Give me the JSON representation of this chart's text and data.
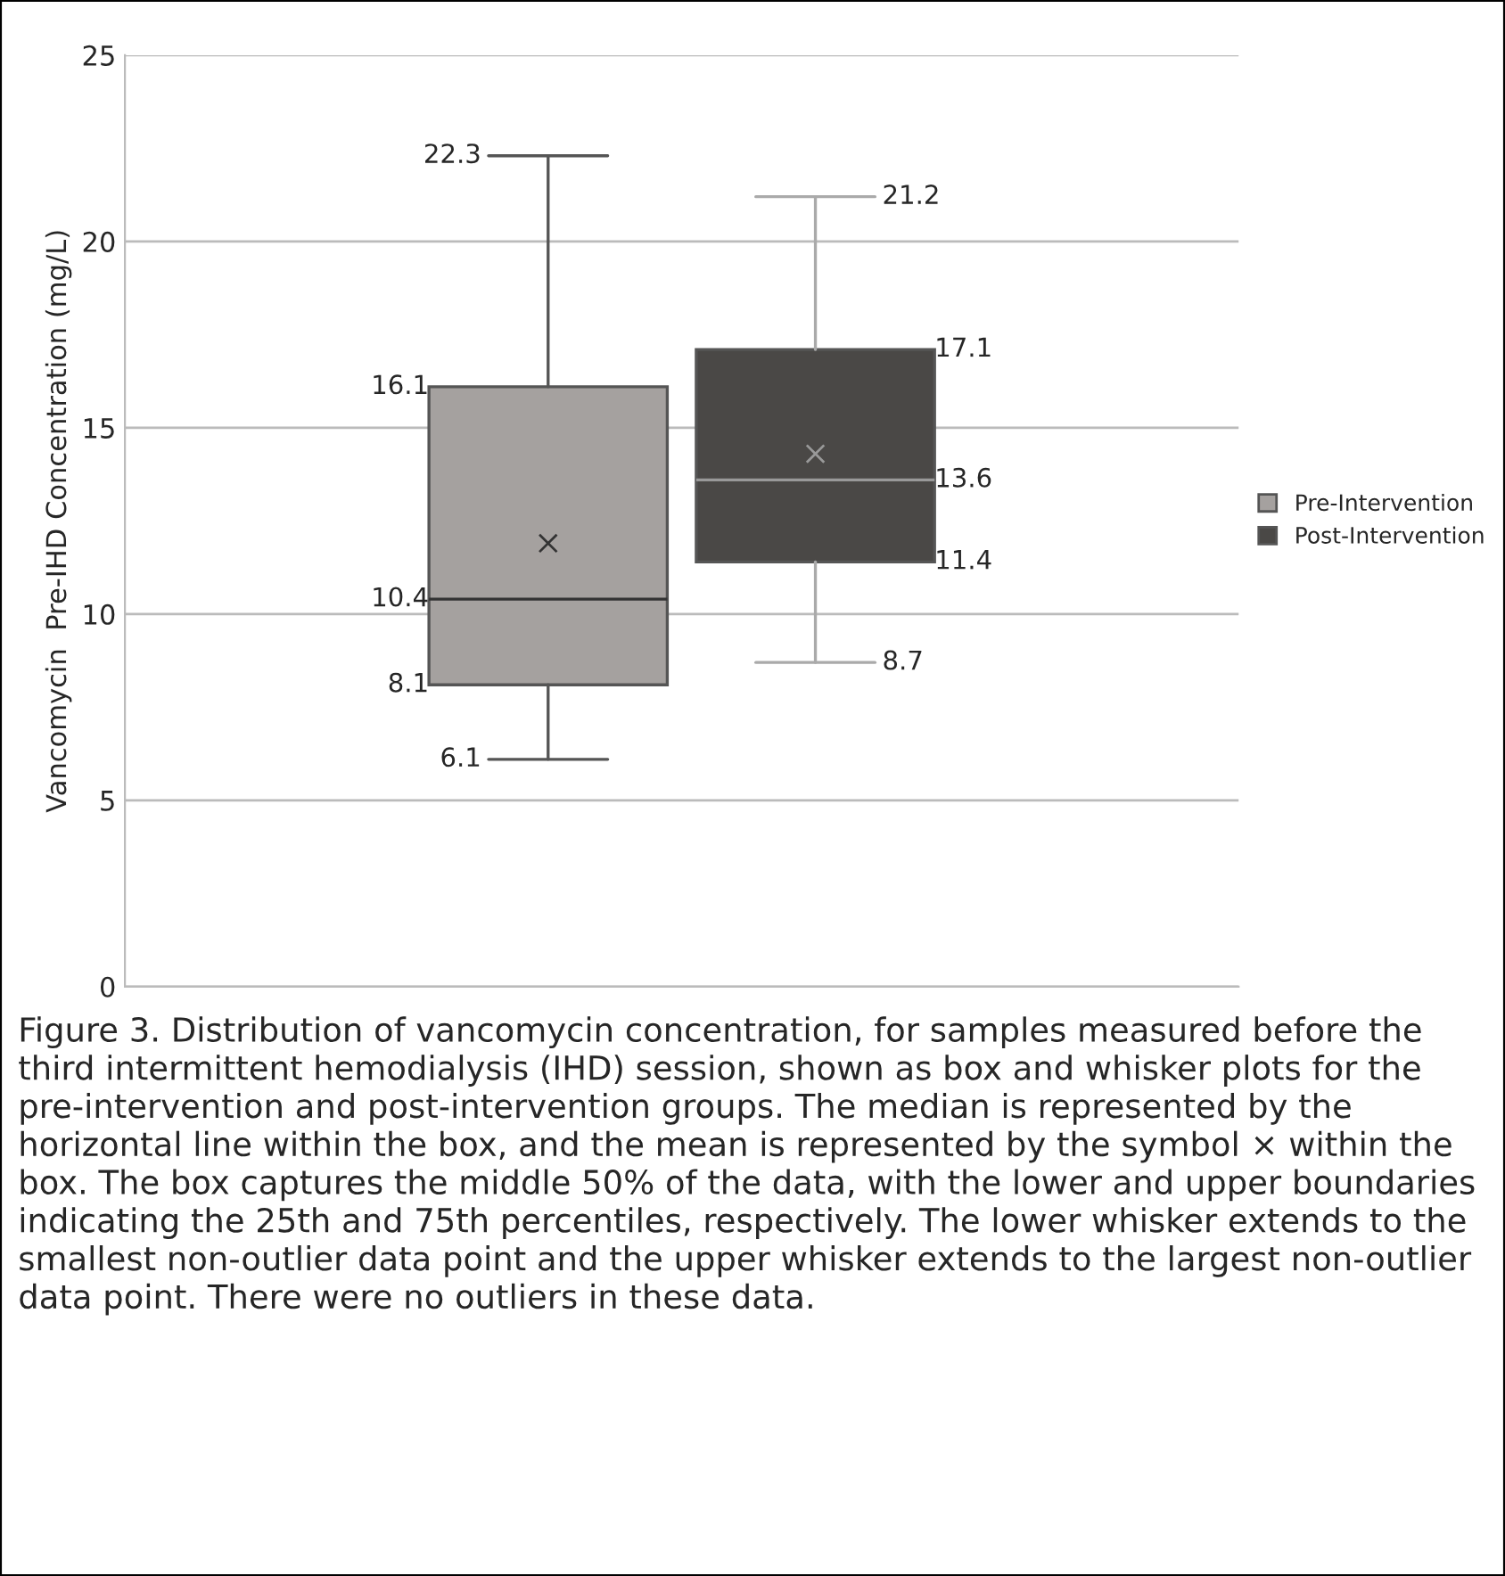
{
  "chart_data": {
    "type": "box",
    "ylabel": "Vancomycin  Pre-IHD Concentration (mg/L)",
    "categories": [
      null
    ],
    "series": [
      {
        "name": "Pre-Intervention",
        "color": "#a5a19f",
        "boxes": [
          {
            "low": 6.1,
            "q1": 8.1,
            "median": 10.4,
            "q3": 16.1,
            "high": 22.3,
            "mean": 11.9
          }
        ]
      },
      {
        "name": "Post-Intervention",
        "color": "#4a4846",
        "boxes": [
          {
            "low": 8.7,
            "q1": 11.4,
            "median": 13.6,
            "q3": 17.1,
            "high": 21.2,
            "mean": 14.3
          }
        ]
      }
    ],
    "ylim": [
      0,
      25
    ],
    "yticks": [
      0,
      5,
      10,
      15,
      20,
      25
    ],
    "grid": "y",
    "legend": "right",
    "tick_labels": "y",
    "data_labels": true,
    "annotations": [
      "22.3",
      "16.1",
      "10.4",
      "8.1",
      "6.1",
      "21.2",
      "17.1",
      "13.6",
      "11.4",
      "8.7",
      "Figure 3. Distribution of vancomycin concentration, for samples measured before the third intermittent hemodialysis (IHD) session, shown as box and whisker plots for the pre-intervention and post-intervention groups. The median is represented by the horizontal line within the box, and the mean is represented by the symbol × within the box. The box captures the middle 50% of the data, with the lower and upper boundaries indicating the 25th and 75th percentiles, respectively. The lower whisker extends to the smallest non-outlier data point and the upper whisker extends to the largest non-outlier data point. There were no outliers in these data."
    ]
  }
}
